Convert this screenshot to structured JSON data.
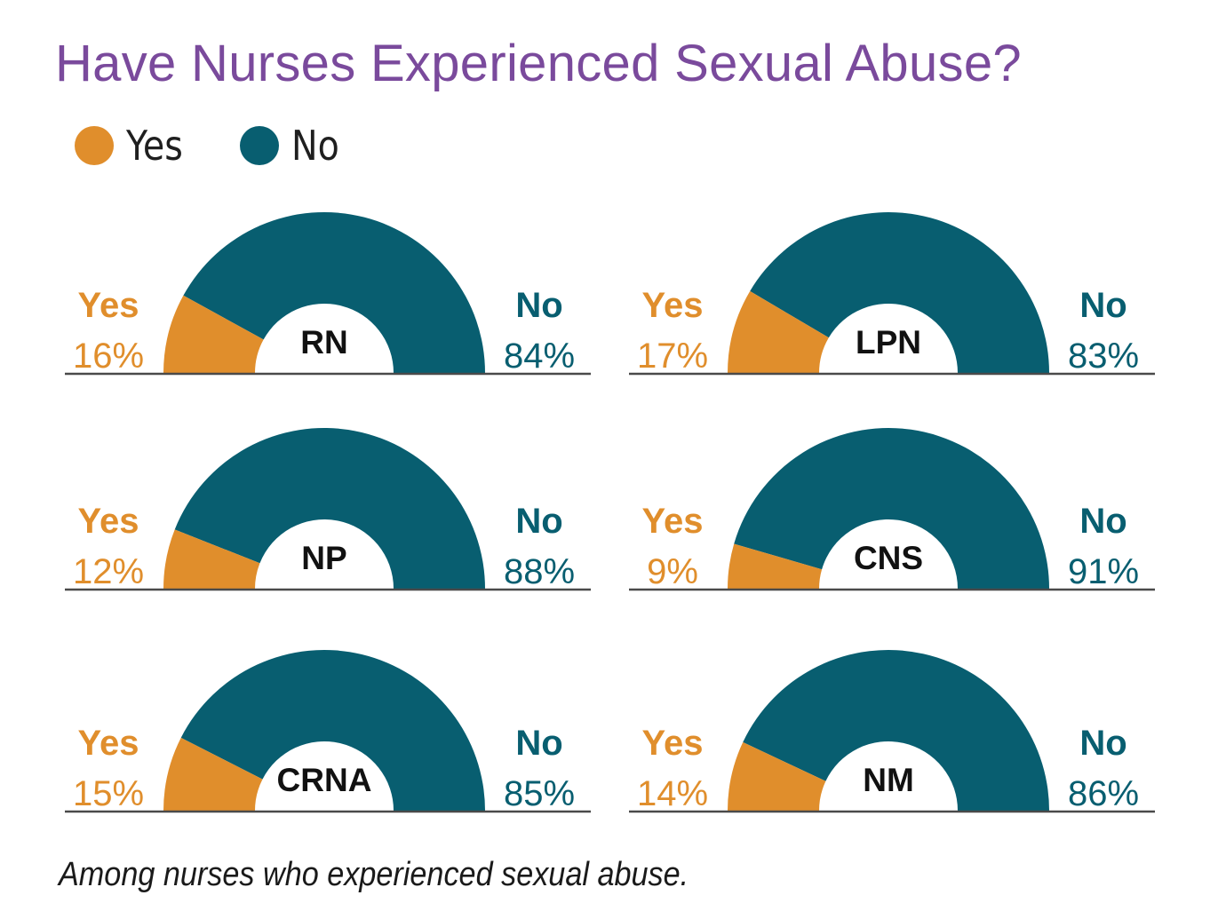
{
  "title": "Have Nurses Experienced Sexual Abuse?",
  "legend": {
    "items": [
      {
        "label": "Yes",
        "color": "#e08e2c"
      },
      {
        "label": "No",
        "color": "#085e70"
      }
    ]
  },
  "colors": {
    "yes": "#e08e2c",
    "no": "#085e70",
    "title": "#7a4a9c",
    "baseline": "#4a4a4a"
  },
  "chart_data": {
    "type": "pie",
    "variant": "semicircle-donut",
    "title": "Have Nurses Experienced Sexual Abuse?",
    "legend": [
      "Yes",
      "No"
    ],
    "legend_position": "top-left",
    "charts": [
      {
        "category": "RN",
        "yes_label": "Yes",
        "no_label": "No",
        "yes_text": "16%",
        "no_text": "84%",
        "yes": 16,
        "no": 84
      },
      {
        "category": "LPN",
        "yes_label": "Yes",
        "no_label": "No",
        "yes_text": "17%",
        "no_text": "83%",
        "yes": 17,
        "no": 83
      },
      {
        "category": "NP",
        "yes_label": "Yes",
        "no_label": "No",
        "yes_text": "12%",
        "no_text": "88%",
        "yes": 12,
        "no": 88
      },
      {
        "category": "CNS",
        "yes_label": "Yes",
        "no_label": "No",
        "yes_text": "9%",
        "no_text": "91%",
        "yes": 9,
        "no": 91
      },
      {
        "category": "CRNA",
        "yes_label": "Yes",
        "no_label": "No",
        "yes_text": "15%",
        "no_text": "85%",
        "yes": 15,
        "no": 85
      },
      {
        "category": "NM",
        "yes_label": "Yes",
        "no_label": "No",
        "yes_text": "14%",
        "no_text": "86%",
        "yes": 14,
        "no": 86
      }
    ]
  },
  "footnote": "Among nurses who experienced sexual abuse."
}
